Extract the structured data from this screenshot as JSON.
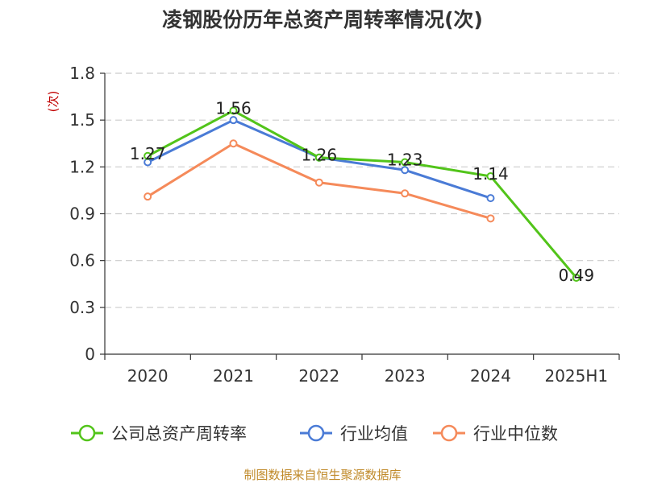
{
  "chart_data": {
    "type": "line",
    "title": "凌钢股份历年总资产周转率情况(次)",
    "ylabel": "(次)",
    "xlabel": "",
    "categories": [
      "2020",
      "2021",
      "2022",
      "2023",
      "2024",
      "2025H1"
    ],
    "ylim": [
      0,
      1.8
    ],
    "yticks": [
      0,
      0.3,
      0.6,
      0.9,
      1.2,
      1.5,
      1.8
    ],
    "ytick_labels": [
      "0",
      "0.3",
      "0.6",
      "0.9",
      "1.2",
      "1.5",
      "1.8"
    ],
    "grid": true,
    "legend_position": "bottom",
    "series": [
      {
        "name": "公司总资产周转率",
        "values": [
          1.27,
          1.56,
          1.26,
          1.23,
          1.14,
          0.49
        ],
        "color": "#52c41a",
        "labels": [
          "1.27",
          "1.56",
          "1.26",
          "1.23",
          "1.14",
          "0.49"
        ]
      },
      {
        "name": "行业均值",
        "values": [
          1.23,
          1.5,
          1.26,
          1.18,
          1.0,
          null
        ],
        "color": "#4a7bd6"
      },
      {
        "name": "行业中位数",
        "values": [
          1.01,
          1.35,
          1.1,
          1.03,
          0.87,
          null
        ],
        "color": "#f58a5a"
      }
    ],
    "source": "制图数据来自恒生聚源数据库"
  }
}
